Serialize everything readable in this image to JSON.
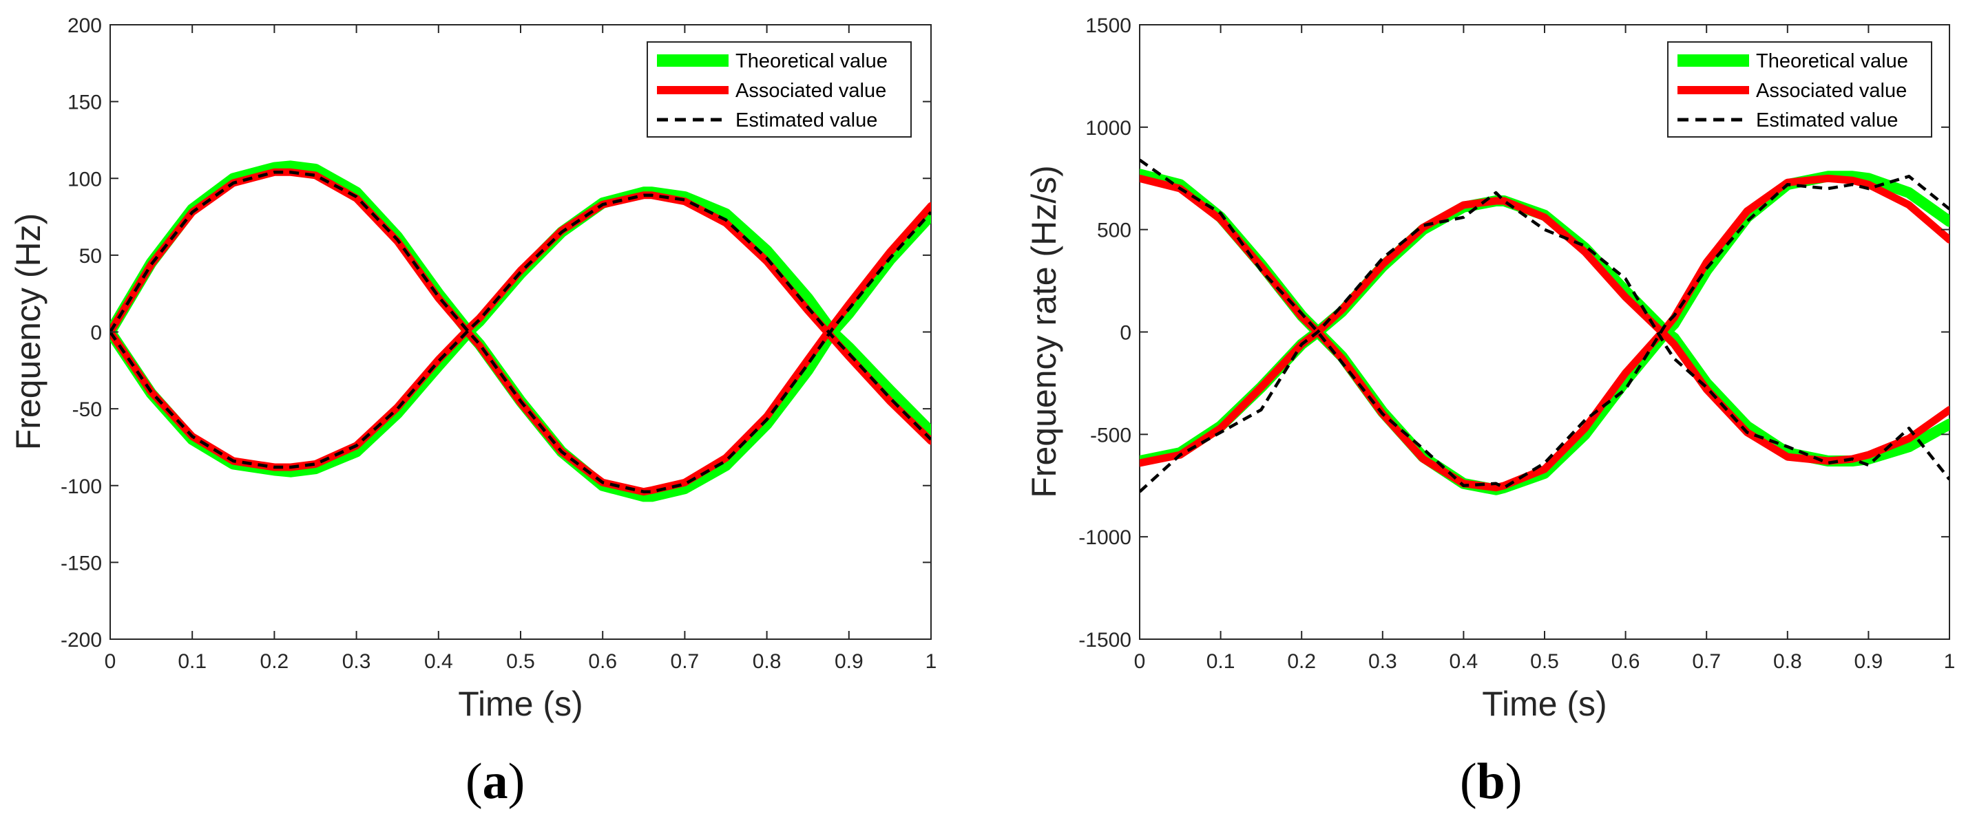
{
  "colors": {
    "theoretical": "#00ff00",
    "associated": "#ff0000",
    "estimated": "#000000",
    "axis": "#262626"
  },
  "chart_data": [
    {
      "type": "line",
      "panel": "a",
      "caption": {
        "open": "(",
        "letter": "a",
        "close": ")"
      },
      "xlabel": "Time (s)",
      "ylabel": "Frequency (Hz)",
      "xlim": [
        0,
        1
      ],
      "ylim": [
        -200,
        200
      ],
      "xticks": [
        0,
        0.1,
        0.2,
        0.3,
        0.4,
        0.5,
        0.6,
        0.7,
        0.8,
        0.9,
        1
      ],
      "xtick_labels": [
        "0",
        "0.1",
        "0.2",
        "0.3",
        "0.4",
        "0.5",
        "0.6",
        "0.7",
        "0.8",
        "0.9",
        "1"
      ],
      "yticks": [
        -200,
        -150,
        -100,
        -50,
        0,
        50,
        100,
        150,
        200
      ],
      "ytick_labels": [
        "-200",
        "-150",
        "-100",
        "-50",
        "0",
        "50",
        "100",
        "150",
        "200"
      ],
      "grid": false,
      "legend": {
        "placement": "top-right",
        "entries": [
          "Theoretical value",
          "Associated value",
          "Estimated value"
        ]
      },
      "x": [
        0,
        0.05,
        0.1,
        0.15,
        0.2,
        0.22,
        0.25,
        0.3,
        0.35,
        0.4,
        0.44,
        0.45,
        0.5,
        0.55,
        0.6,
        0.65,
        0.66,
        0.7,
        0.75,
        0.8,
        0.85,
        0.88,
        0.9,
        0.95,
        1
      ],
      "series": [
        {
          "name": "Theoretical value",
          "style": "theoretical",
          "values": [
            0,
            45,
            80,
            100,
            107,
            108,
            106,
            91,
            62,
            25,
            -2,
            -8,
            -45,
            -78,
            -100,
            -107,
            -107,
            -102,
            -87,
            -60,
            -25,
            0,
            12,
            47,
            76
          ]
        },
        {
          "name": "Theoretical value",
          "style": "theoretical",
          "values": [
            0,
            -40,
            -70,
            -86,
            -90,
            -91,
            -89,
            -78,
            -53,
            -22,
            2,
            7,
            38,
            65,
            84,
            91,
            91,
            88,
            77,
            53,
            22,
            0,
            -10,
            -38,
            -65
          ]
        },
        {
          "name": "Associated value",
          "style": "associated",
          "values": [
            0,
            44,
            78,
            97,
            104,
            104,
            102,
            87,
            59,
            22,
            -3,
            -9,
            -46,
            -78,
            -98,
            -104,
            -103,
            -98,
            -82,
            -55,
            -18,
            4,
            18,
            52,
            82
          ]
        },
        {
          "name": "Associated value",
          "style": "associated",
          "values": [
            0,
            -39,
            -68,
            -84,
            -88,
            -88,
            -86,
            -74,
            -49,
            -18,
            4,
            9,
            40,
            66,
            83,
            89,
            89,
            85,
            71,
            46,
            14,
            -4,
            -16,
            -45,
            -71
          ]
        },
        {
          "name": "Estimated value",
          "style": "estimated",
          "values": [
            0,
            44,
            78,
            97,
            104,
            104,
            102,
            88,
            60,
            23,
            -2,
            -8,
            -45,
            -78,
            -98,
            -104,
            -104,
            -99,
            -84,
            -57,
            -21,
            2,
            15,
            48,
            78
          ]
        },
        {
          "name": "Estimated value",
          "style": "estimated",
          "values": [
            0,
            -39,
            -68,
            -84,
            -88,
            -88,
            -86,
            -74,
            -50,
            -19,
            3,
            8,
            39,
            65,
            83,
            89,
            89,
            86,
            73,
            48,
            16,
            -3,
            -14,
            -43,
            -70
          ]
        }
      ]
    },
    {
      "type": "line",
      "panel": "b",
      "caption": {
        "open": "(",
        "letter": "b",
        "close": ")"
      },
      "xlabel": "Time (s)",
      "ylabel": "Frequency rate (Hz/s)",
      "xlim": [
        0,
        1
      ],
      "ylim": [
        -1500,
        1500
      ],
      "xticks": [
        0,
        0.1,
        0.2,
        0.3,
        0.4,
        0.5,
        0.6,
        0.7,
        0.8,
        0.9,
        1
      ],
      "xtick_labels": [
        "0",
        "0.1",
        "0.2",
        "0.3",
        "0.4",
        "0.5",
        "0.6",
        "0.7",
        "0.8",
        "0.9",
        "1"
      ],
      "yticks": [
        -1500,
        -1000,
        -500,
        0,
        500,
        1000,
        1500
      ],
      "ytick_labels": [
        "-1500",
        "-1000",
        "-500",
        "0",
        "500",
        "1000",
        "1500"
      ],
      "grid": false,
      "legend": {
        "placement": "top-right",
        "entries": [
          "Theoretical value",
          "Associated value",
          "Estimated value"
        ]
      },
      "x": [
        0,
        0.05,
        0.1,
        0.15,
        0.2,
        0.22,
        0.25,
        0.3,
        0.35,
        0.4,
        0.44,
        0.45,
        0.5,
        0.55,
        0.6,
        0.65,
        0.66,
        0.7,
        0.75,
        0.8,
        0.85,
        0.88,
        0.9,
        0.95,
        1
      ],
      "series": [
        {
          "name": "Theoretical value",
          "style": "theoretical",
          "values": [
            770,
            720,
            560,
            330,
            80,
            0,
            -120,
            -390,
            -610,
            -740,
            -770,
            -760,
            -690,
            -500,
            -240,
            0,
            40,
            300,
            560,
            720,
            760,
            760,
            750,
            680,
            540
          ]
        },
        {
          "name": "Theoretical value",
          "style": "theoretical",
          "values": [
            -630,
            -590,
            -460,
            -270,
            -60,
            0,
            100,
            320,
            500,
            610,
            640,
            640,
            570,
            410,
            200,
            0,
            -30,
            -250,
            -460,
            -590,
            -630,
            -630,
            -620,
            -560,
            -450
          ]
        },
        {
          "name": "Associated value",
          "style": "associated",
          "values": [
            750,
            700,
            550,
            320,
            75,
            0,
            -130,
            -400,
            -620,
            -740,
            -760,
            -750,
            -670,
            -470,
            -200,
            20,
            70,
            340,
            590,
            730,
            750,
            740,
            720,
            620,
            450
          ]
        },
        {
          "name": "Associated value",
          "style": "associated",
          "values": [
            -640,
            -600,
            -470,
            -270,
            -60,
            0,
            110,
            330,
            510,
            620,
            640,
            640,
            560,
            390,
            170,
            -20,
            -60,
            -280,
            -490,
            -610,
            -630,
            -620,
            -600,
            -520,
            -380
          ]
        },
        {
          "name": "Estimated value",
          "style": "estimated",
          "values": [
            840,
            700,
            580,
            300,
            90,
            0,
            -150,
            -400,
            -570,
            -750,
            -740,
            -760,
            -640,
            -430,
            -280,
            40,
            80,
            310,
            540,
            720,
            700,
            720,
            700,
            760,
            600
          ]
        },
        {
          "name": "Estimated value",
          "style": "estimated",
          "values": [
            -780,
            -600,
            -490,
            -380,
            -60,
            0,
            130,
            360,
            520,
            560,
            680,
            640,
            500,
            420,
            260,
            -70,
            -130,
            -270,
            -490,
            -560,
            -640,
            -620,
            -650,
            -470,
            -720
          ]
        }
      ]
    }
  ]
}
